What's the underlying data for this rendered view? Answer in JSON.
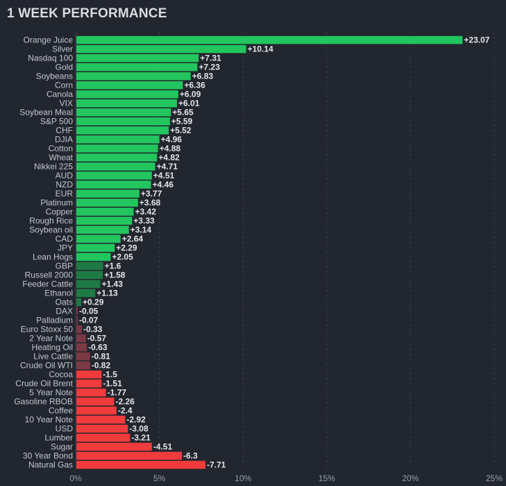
{
  "title": "1 WEEK PERFORMANCE",
  "chart_data": {
    "type": "bar",
    "orientation": "horizontal",
    "title": "1 WEEK PERFORMANCE",
    "xlim": [
      0,
      25
    ],
    "x_ticks": [
      "0%",
      "5%",
      "10%",
      "15%",
      "20%",
      "25%"
    ],
    "grid": "vertical dashed",
    "colors": {
      "positive_strong": "#22c55e",
      "positive_weak": "#1e7a45",
      "negative_weak": "#7a3a44",
      "negative_strong": "#ef3b3b",
      "background": "#22262f"
    },
    "categories": [
      "Orange Juice",
      "Silver",
      "Nasdaq 100",
      "Gold",
      "Soybeans",
      "Corn",
      "Canola",
      "VIX",
      "Soybean Meal",
      "S&P 500",
      "CHF",
      "DJIA",
      "Cotton",
      "Wheat",
      "Nikkei 225",
      "AUD",
      "NZD",
      "EUR",
      "Platinum",
      "Copper",
      "Rough Rice",
      "Soybean oil",
      "CAD",
      "JPY",
      "Lean Hogs",
      "GBP",
      "Russell 2000",
      "Feeder Cattle",
      "Ethanol",
      "Oats",
      "DAX",
      "Palladium",
      "Euro Stoxx 50",
      "2 Year Note",
      "Heating Oil",
      "Live Cattle",
      "Crude Oil WTI",
      "Cocoa",
      "Crude Oil Brent",
      "5 Year Note",
      "Gasoline RBOB",
      "Coffee",
      "10 Year Note",
      "USD",
      "Lumber",
      "Sugar",
      "30 Year Bond",
      "Natural Gas"
    ],
    "values": [
      23.07,
      10.14,
      7.31,
      7.23,
      6.83,
      6.36,
      6.09,
      6.01,
      5.65,
      5.59,
      5.52,
      4.96,
      4.88,
      4.82,
      4.71,
      4.51,
      4.46,
      3.77,
      3.68,
      3.42,
      3.33,
      3.14,
      2.64,
      2.29,
      2.05,
      1.6,
      1.58,
      1.43,
      1.13,
      0.29,
      -0.05,
      -0.07,
      -0.33,
      -0.57,
      -0.63,
      -0.81,
      -0.82,
      -1.5,
      -1.51,
      -1.77,
      -2.26,
      -2.4,
      -2.92,
      -3.08,
      -3.21,
      -4.51,
      -6.3,
      -7.71
    ],
    "value_labels": [
      "+23.07",
      "+10.14",
      "+7.31",
      "+7.23",
      "+6.83",
      "+6.36",
      "+6.09",
      "+6.01",
      "+5.65",
      "+5.59",
      "+5.52",
      "+4.96",
      "+4.88",
      "+4.82",
      "+4.71",
      "+4.51",
      "+4.46",
      "+3.77",
      "+3.68",
      "+3.42",
      "+3.33",
      "+3.14",
      "+2.64",
      "+2.29",
      "+2.05",
      "+1.6",
      "+1.58",
      "+1.43",
      "+1.13",
      "+0.29",
      "-0.05",
      "-0.07",
      "-0.33",
      "-0.57",
      "-0.63",
      "-0.81",
      "-0.82",
      "-1.5",
      "-1.51",
      "-1.77",
      "-2.26",
      "-2.4",
      "-2.92",
      "-3.08",
      "-3.21",
      "-4.51",
      "-6.3",
      "-7.71"
    ]
  }
}
